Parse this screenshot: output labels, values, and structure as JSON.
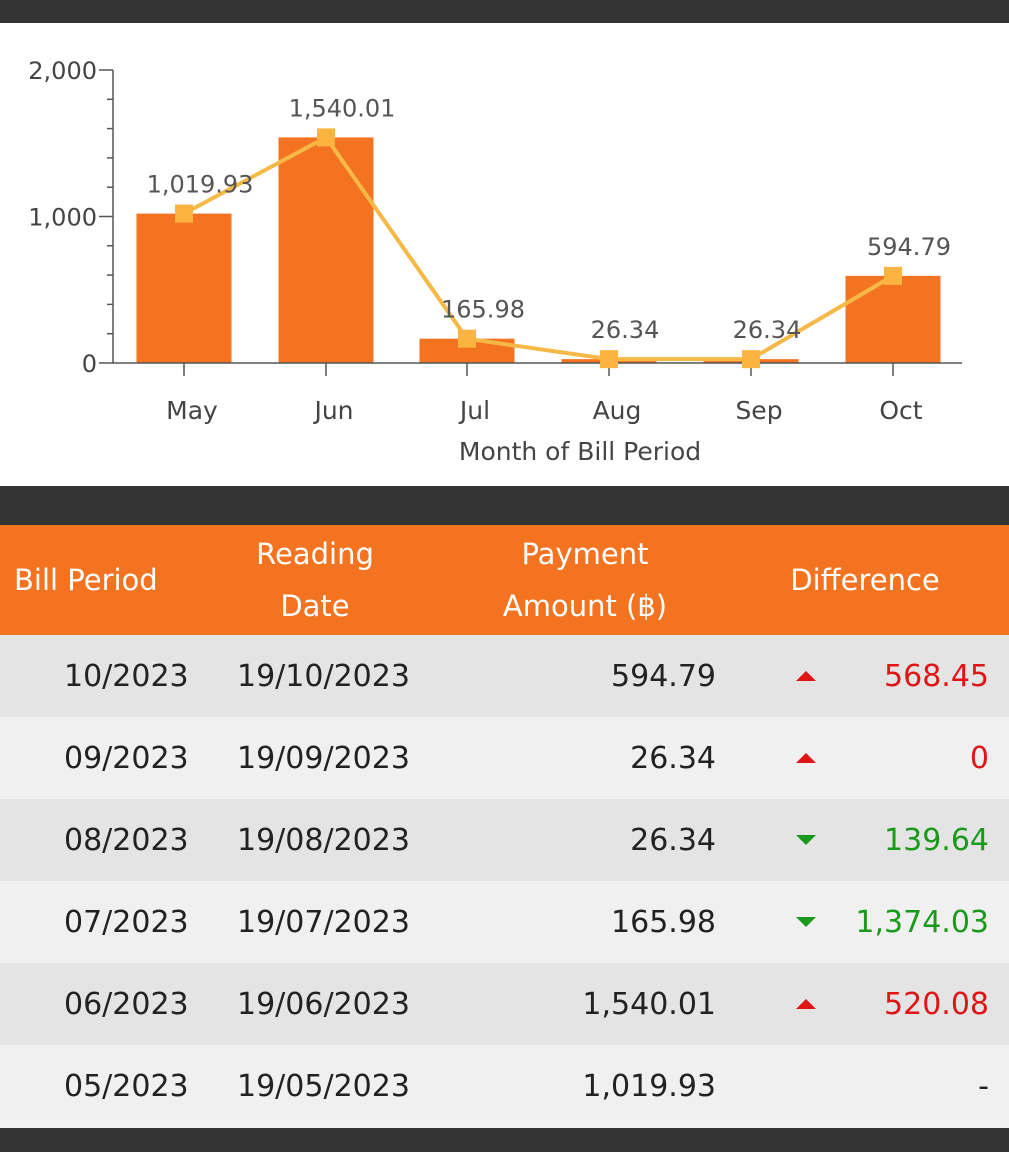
{
  "chart_data": {
    "type": "bar",
    "categories": [
      "May",
      "Jun",
      "Jul",
      "Aug",
      "Sep",
      "Oct"
    ],
    "values": [
      1019.93,
      1540.01,
      165.98,
      26.34,
      26.34,
      594.79
    ],
    "data_labels": [
      "1,019.93",
      "1,540.01",
      "165.98",
      "26.34",
      "26.34",
      "594.79"
    ],
    "overlay_line": true,
    "xlabel": "Month of Bill Period",
    "ylabel": "",
    "ylim": [
      0,
      2000
    ],
    "yticks": [
      0,
      1000,
      2000
    ],
    "ytick_labels": [
      "0",
      "1,000",
      "2,000"
    ],
    "bar_color": "#f37321",
    "line_color": "#f6b946",
    "marker_color": "#fbb440"
  },
  "table": {
    "headers": {
      "bill_period": "Bill Period",
      "reading_line1": "Reading",
      "reading_line2": "Date",
      "payment_line1": "Payment",
      "payment_line2": "Amount (฿)",
      "difference": "Difference"
    },
    "rows": [
      {
        "period": "10/2023",
        "reading": "19/10/2023",
        "payment": "594.79",
        "trend": "up",
        "diff": "568.45"
      },
      {
        "period": "09/2023",
        "reading": "19/09/2023",
        "payment": "26.34",
        "trend": "up",
        "diff": "0"
      },
      {
        "period": "08/2023",
        "reading": "19/08/2023",
        "payment": "26.34",
        "trend": "down",
        "diff": "139.64"
      },
      {
        "period": "07/2023",
        "reading": "19/07/2023",
        "payment": "165.98",
        "trend": "down",
        "diff": "1,374.03"
      },
      {
        "period": "06/2023",
        "reading": "19/06/2023",
        "payment": "1,540.01",
        "trend": "up",
        "diff": "520.08"
      },
      {
        "period": "05/2023",
        "reading": "19/05/2023",
        "payment": "1,019.93",
        "trend": "none",
        "diff": "-"
      }
    ]
  },
  "colors": {
    "accent": "#f37321",
    "dark_bar": "#333333",
    "up": "#e01515",
    "down": "#1a9a1a"
  }
}
